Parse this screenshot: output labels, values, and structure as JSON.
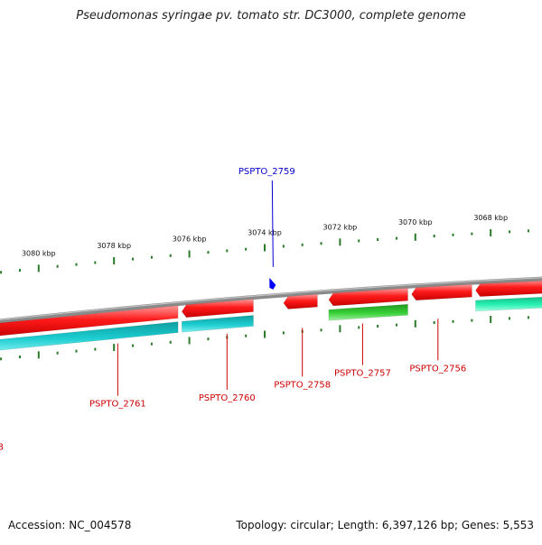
{
  "title": "Pseudomonas syringae pv. tomato str. DC3000, complete genome",
  "footer": {
    "accession": "Accession: NC_004578",
    "summary": "Topology: circular; Length: 6,397,126 bp; Genes: 5,553"
  },
  "colors": {
    "backbone": "#8a8a8a",
    "tick": "#2a7a2a",
    "reverse_gene": "#ee1111",
    "forward_gene_cyan": "#16c4c8",
    "forward_gene_green": "#33cc33",
    "forward_gene_mint": "#22eeaa",
    "gene_label": "#cc0000",
    "highlight_label": "#0000cc",
    "highlight_marker": "#0000ff"
  },
  "scale": {
    "ticks_kbp": [
      3080,
      3078,
      3076,
      3074,
      3072,
      3070,
      3068
    ],
    "tick_labels": [
      "3080 kbp",
      "3078 kbp",
      "3076 kbp",
      "3074 kbp",
      "3072 kbp",
      "3070 kbp",
      "3068 kbp"
    ]
  },
  "genes": [
    {
      "label": "glgB",
      "strand": "reverse",
      "row": "outer",
      "color": "reverse_gene",
      "start_kbp": 3084.4,
      "end_kbp": 3081.8,
      "labeled": false
    },
    {
      "label": "PSPTO_2761",
      "strand": "reverse",
      "row": "outer",
      "color": "reverse_gene",
      "start_kbp": 3081.5,
      "end_kbp": 3076.3,
      "labeled": false
    },
    {
      "label": "PSPTO_2760",
      "strand": "reverse",
      "row": "outer",
      "color": "reverse_gene",
      "start_kbp": 3076.2,
      "end_kbp": 3074.3,
      "labeled": false
    },
    {
      "label": "PSPTO_2758",
      "strand": "reverse",
      "row": "outer",
      "color": "reverse_gene",
      "start_kbp": 3073.5,
      "end_kbp": 3072.6,
      "labeled": false
    },
    {
      "label": "PSPTO_2757",
      "strand": "reverse",
      "row": "outer",
      "color": "reverse_gene",
      "start_kbp": 3072.3,
      "end_kbp": 3070.2,
      "labeled": false
    },
    {
      "label": "PSPTO_2756",
      "strand": "reverse",
      "row": "outer",
      "color": "reverse_gene",
      "start_kbp": 3070.1,
      "end_kbp": 3068.5,
      "labeled": false
    },
    {
      "label": "",
      "strand": "reverse",
      "row": "outer",
      "color": "reverse_gene",
      "start_kbp": 3068.4,
      "end_kbp": 3066.0,
      "labeled": false
    },
    {
      "label": "",
      "strand": "forward",
      "row": "inner",
      "color": "forward_gene_cyan",
      "start_kbp": 3084.4,
      "end_kbp": 3081.6,
      "labeled": false
    },
    {
      "label": "",
      "strand": "forward",
      "row": "inner",
      "color": "forward_gene_cyan",
      "start_kbp": 3081.5,
      "end_kbp": 3076.3,
      "labeled": false
    },
    {
      "label": "",
      "strand": "forward",
      "row": "inner",
      "color": "forward_gene_cyan",
      "start_kbp": 3076.2,
      "end_kbp": 3074.3,
      "labeled": false
    },
    {
      "label": "",
      "strand": "forward",
      "row": "inner",
      "color": "forward_gene_green",
      "start_kbp": 3072.3,
      "end_kbp": 3070.2,
      "labeled": false
    },
    {
      "label": "",
      "strand": "forward",
      "row": "inner",
      "color": "forward_gene_mint",
      "start_kbp": 3068.4,
      "end_kbp": 3066.0,
      "labeled": false
    }
  ],
  "labels": [
    {
      "text": "glgB",
      "kbp": 3081.2,
      "side": "below",
      "color": "gene_label"
    },
    {
      "text": "PSPTO_2761",
      "kbp": 3077.9,
      "side": "below",
      "color": "gene_label"
    },
    {
      "text": "PSPTO_2760",
      "kbp": 3075.0,
      "side": "below",
      "color": "gene_label"
    },
    {
      "text": "PSPTO_2758",
      "kbp": 3073.0,
      "side": "below",
      "color": "gene_label"
    },
    {
      "text": "PSPTO_2757",
      "kbp": 3071.4,
      "side": "below",
      "color": "gene_label"
    },
    {
      "text": "PSPTO_2756",
      "kbp": 3069.4,
      "side": "below",
      "color": "gene_label"
    },
    {
      "text": "PSPTO_2759",
      "kbp": 3073.8,
      "side": "above",
      "color": "highlight_label"
    }
  ]
}
